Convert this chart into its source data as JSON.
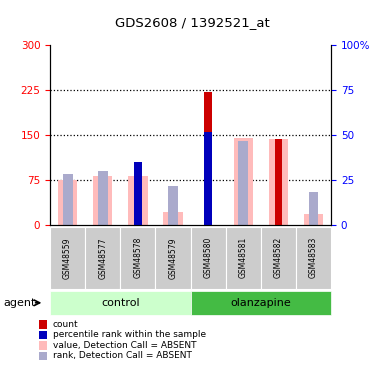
{
  "title": "GDS2608 / 1392521_at",
  "samples": [
    "GSM48559",
    "GSM48577",
    "GSM48578",
    "GSM48579",
    "GSM48580",
    "GSM48581",
    "GSM48582",
    "GSM48583"
  ],
  "count_values": [
    0,
    0,
    85,
    0,
    222,
    0,
    143,
    0
  ],
  "percentile_values": [
    0,
    0,
    105,
    0,
    155,
    0,
    0,
    0
  ],
  "absent_value": [
    75,
    82,
    82,
    22,
    0,
    145,
    143,
    18
  ],
  "absent_rank": [
    85,
    90,
    0,
    65,
    0,
    140,
    0,
    55
  ],
  "ylim_left": [
    0,
    300
  ],
  "ylim_right": [
    0,
    100
  ],
  "yticks_left": [
    0,
    75,
    150,
    225,
    300
  ],
  "yticks_right": [
    0,
    25,
    50,
    75,
    100
  ],
  "color_count": "#cc0000",
  "color_percentile": "#0000bb",
  "color_absent_value": "#ffbbbb",
  "color_absent_rank": "#aaaacc",
  "color_control_bg": "#ccffcc",
  "color_olanzapine_bg": "#44bb44",
  "color_sample_bg": "#cccccc",
  "legend_labels": [
    "count",
    "percentile rank within the sample",
    "value, Detection Call = ABSENT",
    "rank, Detection Call = ABSENT"
  ]
}
